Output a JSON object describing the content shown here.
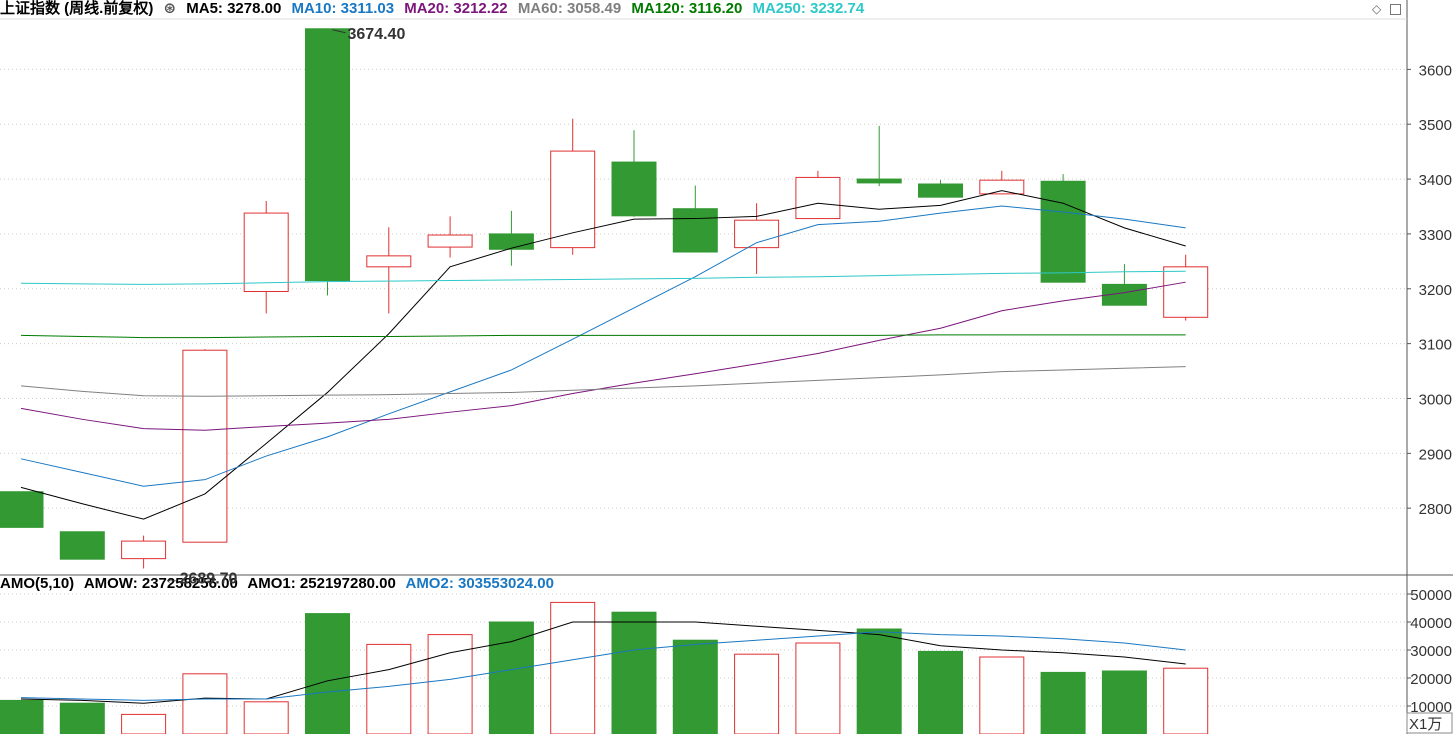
{
  "title": "上证指数 (周线.前复权)",
  "ma_legend": [
    {
      "label": "MA5: 3278.00",
      "color": "#000000"
    },
    {
      "label": "MA10: 3311.03",
      "color": "#1a78c2"
    },
    {
      "label": "MA20: 3212.22",
      "color": "#7b157b"
    },
    {
      "label": "MA60: 3058.49",
      "color": "#808080"
    },
    {
      "label": "MA120: 3116.20",
      "color": "#007a00"
    },
    {
      "label": "MA250: 3232.74",
      "color": "#2ec8c8"
    }
  ],
  "vol_legend": [
    {
      "label": "AMO(5,10)",
      "color": "#000000"
    },
    {
      "label": "AMOW: 237258256.00",
      "color": "#000000"
    },
    {
      "label": "AMO1: 252197280.00",
      "color": "#000000"
    },
    {
      "label": "AMO2: 303553024.00",
      "color": "#1a78c2"
    }
  ],
  "colors": {
    "up": "#e03030",
    "down": "#339933",
    "grid": "#cccccc",
    "axis": "#555555"
  },
  "icons": {
    "indicator": "circle-chevron-icon",
    "pin": "diamond-icon",
    "window": "maximize-icon"
  },
  "chart_data": [
    {
      "type": "candlestick",
      "title": "上证指数 (周线.前复权)",
      "ylim": [
        2680,
        3690
      ],
      "yticks": [
        "2800",
        "2900",
        "3000",
        "3100",
        "3200",
        "3300",
        "3400",
        "3500",
        "3600"
      ],
      "annotations": [
        {
          "label": "3674.40",
          "bar": 5
        },
        {
          "label": "←2689.70",
          "bar": 2
        }
      ],
      "candles": [
        {
          "o": 2830,
          "h": 2830,
          "l": 2765,
          "c": 2765
        },
        {
          "o": 2757,
          "h": 2757,
          "l": 2707,
          "c": 2707
        },
        {
          "o": 2708,
          "h": 2750,
          "l": 2690,
          "c": 2740
        },
        {
          "o": 2738,
          "h": 3090,
          "l": 2738,
          "c": 3088
        },
        {
          "o": 3195,
          "h": 3360,
          "l": 3155,
          "c": 3338
        },
        {
          "o": 3674,
          "h": 3674,
          "l": 3188,
          "c": 3215
        },
        {
          "o": 3240,
          "h": 3312,
          "l": 3155,
          "c": 3260
        },
        {
          "o": 3276,
          "h": 3332,
          "l": 3257,
          "c": 3298
        },
        {
          "o": 3300,
          "h": 3342,
          "l": 3242,
          "c": 3272
        },
        {
          "o": 3275,
          "h": 3510,
          "l": 3262,
          "c": 3451
        },
        {
          "o": 3431,
          "h": 3489,
          "l": 3331,
          "c": 3333
        },
        {
          "o": 3346,
          "h": 3388,
          "l": 3267,
          "c": 3267
        },
        {
          "o": 3275,
          "h": 3356,
          "l": 3227,
          "c": 3325
        },
        {
          "o": 3328,
          "h": 3415,
          "l": 3328,
          "c": 3403
        },
        {
          "o": 3400,
          "h": 3497,
          "l": 3387,
          "c": 3393
        },
        {
          "o": 3391,
          "h": 3398,
          "l": 3367,
          "c": 3367
        },
        {
          "o": 3373,
          "h": 3415,
          "l": 3372,
          "c": 3398
        },
        {
          "o": 3396,
          "h": 3409,
          "l": 3212,
          "c": 3212
        },
        {
          "o": 3208,
          "h": 3245,
          "l": 3170,
          "c": 3170
        },
        {
          "o": 3148,
          "h": 3262,
          "l": 3142,
          "c": 3240
        }
      ],
      "series": [
        {
          "name": "MA5",
          "color": "#000000",
          "values": [
            2838,
            2808,
            2780,
            2826,
            2918,
            3011,
            3118,
            3240,
            3274,
            3302,
            3327,
            3328,
            3332,
            3356,
            3345,
            3352,
            3379,
            3356,
            3311,
            3278
          ]
        },
        {
          "name": "MA10",
          "color": "#1a78c2",
          "values": [
            2890,
            2865,
            2840,
            2852,
            2895,
            2930,
            2972,
            3012,
            3052,
            3108,
            3165,
            3222,
            3284,
            3317,
            3323,
            3338,
            3351,
            3340,
            3327,
            3311
          ]
        },
        {
          "name": "MA20",
          "color": "#7b157b",
          "values": [
            2982,
            2962,
            2945,
            2942,
            2949,
            2955,
            2962,
            2975,
            2987,
            3009,
            3028,
            3045,
            3063,
            3082,
            3106,
            3128,
            3160,
            3178,
            3193,
            3212
          ]
        },
        {
          "name": "MA60",
          "color": "#808080",
          "values": [
            3023,
            3013,
            3005,
            3004,
            3005,
            3006,
            3007,
            3009,
            3011,
            3015,
            3019,
            3023,
            3028,
            3033,
            3038,
            3043,
            3049,
            3052,
            3055,
            3058
          ]
        },
        {
          "name": "MA120",
          "color": "#007a00",
          "values": [
            3115,
            3113,
            3111,
            3111,
            3112,
            3113,
            3113,
            3114,
            3115,
            3115,
            3115,
            3115,
            3115,
            3115,
            3115,
            3116,
            3116,
            3116,
            3116,
            3116
          ]
        },
        {
          "name": "MA250",
          "color": "#2ec8c8",
          "values": [
            3210,
            3209,
            3208,
            3209,
            3211,
            3213,
            3214,
            3215,
            3216,
            3217,
            3218,
            3219,
            3221,
            3222,
            3224,
            3226,
            3228,
            3229,
            3231,
            3232
          ]
        }
      ]
    },
    {
      "type": "bar",
      "title": "AMO(5,10)",
      "unit_label": "X1万",
      "ylim": [
        0,
        50000
      ],
      "yticks": [
        "10000",
        "20000",
        "30000",
        "40000",
        "50000"
      ],
      "values": [
        12000,
        11000,
        7000,
        21500,
        11500,
        43000,
        32000,
        35500,
        40000,
        47000,
        43500,
        33500,
        28500,
        32500,
        37500,
        29500,
        27500,
        22000,
        22500,
        23500
      ],
      "series": [
        {
          "name": "AMO1",
          "color": "#000000",
          "values": [
            12500,
            12000,
            11000,
            12800,
            12500,
            19000,
            23000,
            29000,
            33000,
            40000,
            40000,
            40000,
            38500,
            37000,
            35500,
            31500,
            30000,
            29000,
            27500,
            25000
          ]
        },
        {
          "name": "AMO2",
          "color": "#1a78c2",
          "values": [
            13000,
            12500,
            12000,
            12500,
            12500,
            15000,
            17000,
            19500,
            23000,
            26500,
            30000,
            32000,
            33500,
            35000,
            36500,
            35500,
            35000,
            34000,
            32500,
            30000
          ]
        }
      ]
    }
  ]
}
